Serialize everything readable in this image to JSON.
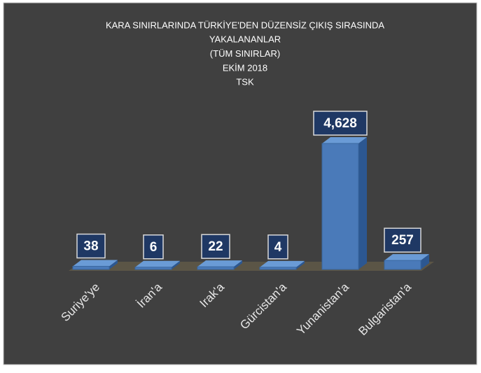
{
  "chart_data": {
    "type": "bar3d",
    "title": [
      "KARA SINIRLARINDA TÜRKİYE'DEN DÜZENSİZ ÇIKIŞ SIRASINDA",
      "YAKALANANLAR",
      "(TÜM SINIRLAR)",
      "EKİM 2018",
      "TSK"
    ],
    "categories": [
      "Suriye'ye",
      "İran'a",
      "Irak'a",
      "Gürcistan'a",
      "Yunanistan'a",
      "Bulgaristan'a"
    ],
    "values": [
      38,
      6,
      22,
      4,
      4628,
      257
    ],
    "value_labels": [
      "38",
      "6",
      "22",
      "4",
      "4,628",
      "257"
    ],
    "color": "#4a7ab9"
  }
}
